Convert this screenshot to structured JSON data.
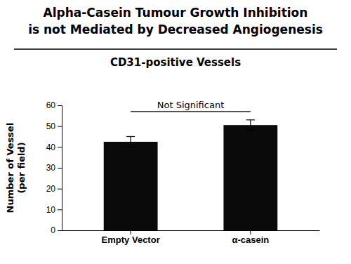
{
  "chart_data": {
    "type": "bar",
    "title": [
      "Alpha-Casein Tumour Growth Inhibition",
      "is not Mediated by Decreased Angiogenesis"
    ],
    "subtitle": "CD31-positive Vessels",
    "categories": [
      "Empty Vector",
      "α-casein"
    ],
    "values": [
      42.5,
      50.5
    ],
    "errors": [
      2.5,
      2.5
    ],
    "color": "#0a0a0a",
    "ylabel": [
      "Number of Vessel",
      "(per field)"
    ],
    "ylim": [
      0,
      60
    ],
    "yticks": [
      0,
      10,
      20,
      30,
      40,
      50,
      60
    ],
    "grid": false,
    "annotations": [
      {
        "text": "Not Significant",
        "y": 57.0
      }
    ]
  }
}
